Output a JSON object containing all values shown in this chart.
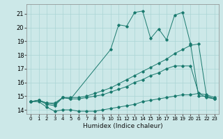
{
  "xlabel": "Humidex (Indice chaleur)",
  "bg_color": "#cce8e8",
  "line_color": "#1a7a6e",
  "grid_color": "#aad4d4",
  "xlim": [
    -0.5,
    23.5
  ],
  "ylim": [
    13.7,
    21.7
  ],
  "xticks": [
    0,
    1,
    2,
    3,
    4,
    5,
    6,
    7,
    8,
    9,
    10,
    11,
    12,
    13,
    14,
    15,
    16,
    17,
    18,
    19,
    20,
    21,
    22,
    23
  ],
  "yticks": [
    14,
    15,
    16,
    17,
    18,
    19,
    20,
    21
  ],
  "lines": [
    {
      "x": [
        0,
        1,
        2,
        3,
        4,
        5,
        10,
        11,
        12,
        13,
        14,
        15,
        16,
        17,
        18,
        19,
        20,
        21,
        22,
        23
      ],
      "y": [
        14.6,
        14.7,
        14.5,
        14.5,
        14.9,
        14.8,
        18.4,
        20.2,
        20.1,
        21.1,
        21.2,
        19.2,
        19.9,
        19.1,
        20.9,
        21.1,
        18.8,
        15.0,
        15.0,
        14.8
      ]
    },
    {
      "x": [
        0,
        1,
        2,
        3,
        4,
        5,
        6,
        7,
        8,
        9,
        10,
        11,
        12,
        13,
        14,
        15,
        16,
        17,
        18,
        19,
        20,
        21,
        22,
        23
      ],
      "y": [
        14.6,
        14.7,
        14.5,
        14.4,
        14.9,
        14.9,
        14.9,
        15.0,
        15.2,
        15.4,
        15.6,
        15.9,
        16.2,
        16.5,
        16.8,
        17.1,
        17.4,
        17.7,
        18.1,
        18.4,
        18.7,
        18.8,
        15.0,
        14.8
      ]
    },
    {
      "x": [
        0,
        1,
        2,
        3,
        4,
        5,
        6,
        7,
        8,
        9,
        10,
        11,
        12,
        13,
        14,
        15,
        16,
        17,
        18,
        19,
        20,
        21,
        22,
        23
      ],
      "y": [
        14.6,
        14.7,
        14.4,
        14.3,
        14.9,
        14.8,
        14.8,
        14.9,
        15.0,
        15.1,
        15.3,
        15.5,
        15.7,
        16.0,
        16.2,
        16.5,
        16.7,
        17.0,
        17.2,
        17.2,
        17.2,
        15.2,
        14.9,
        14.8
      ]
    },
    {
      "x": [
        0,
        1,
        2,
        3,
        4,
        5,
        6,
        7,
        8,
        9,
        10,
        11,
        12,
        13,
        14,
        15,
        16,
        17,
        18,
        19,
        20,
        21,
        22,
        23
      ],
      "y": [
        14.6,
        14.6,
        14.2,
        13.9,
        14.0,
        14.0,
        13.9,
        13.9,
        13.9,
        14.0,
        14.1,
        14.2,
        14.3,
        14.4,
        14.6,
        14.7,
        14.8,
        14.9,
        15.0,
        15.1,
        15.1,
        15.2,
        15.1,
        14.9
      ]
    }
  ]
}
